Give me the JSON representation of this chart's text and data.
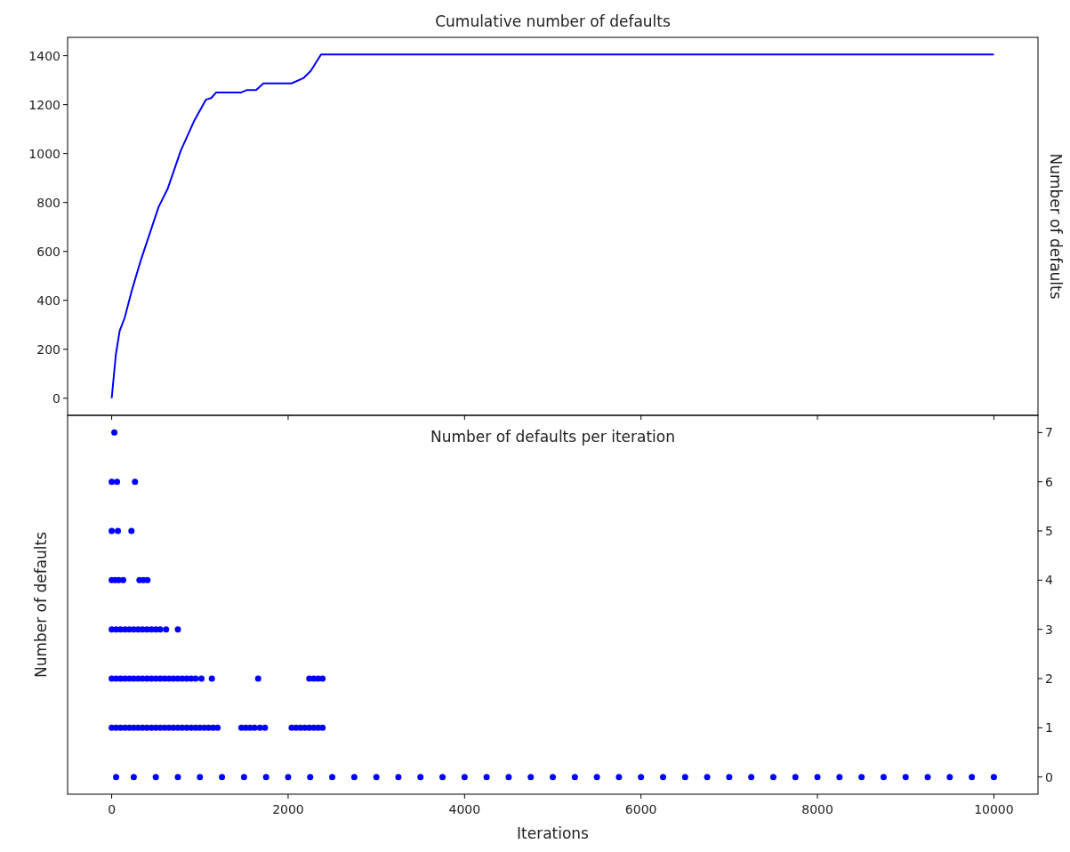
{
  "chart_data": [
    {
      "type": "line",
      "title": "Cumulative number of defaults",
      "ylabel": "Number of defaults",
      "xlim": [
        -500,
        10500
      ],
      "xticks": [
        0,
        2000,
        4000,
        6000,
        8000,
        10000
      ],
      "ylim": [
        -70,
        1475
      ],
      "yticks": [
        0,
        200,
        400,
        600,
        800,
        1000,
        1200,
        1400
      ],
      "tick_labels": "y",
      "grid": false,
      "series": [
        {
          "color": "#0000ff",
          "x": [
            0,
            47,
            90,
            147,
            231,
            331,
            432,
            532,
            633,
            783,
            934,
            1067,
            1128,
            1185,
            1469,
            1536,
            1637,
            1720,
            2038,
            2172,
            2256,
            2373,
            10000
          ],
          "values": [
            0,
            178,
            275,
            329,
            444,
            565,
            674,
            782,
            855,
            1012,
            1133,
            1220,
            1227,
            1250,
            1250,
            1260,
            1260,
            1287,
            1287,
            1308,
            1338,
            1405,
            1405
          ]
        }
      ]
    },
    {
      "type": "scatter",
      "title": "Number of defaults per iteration",
      "xlabel": "Iterations",
      "ylabel": "Number of defaults",
      "xlim": [
        -500,
        10500
      ],
      "xticks": [
        0,
        2000,
        4000,
        6000,
        8000,
        10000
      ],
      "ylim": [
        -0.35,
        7.35
      ],
      "yticks": [
        0,
        1,
        2,
        3,
        4,
        5,
        6,
        7
      ],
      "grid": false,
      "marker": "circle",
      "series": [
        {
          "color": "#0000ff",
          "x": [
            30
          ],
          "values": [
            7
          ]
        },
        {
          "color": "#0000ff",
          "x": [
            0,
            60,
            264
          ],
          "values": [
            6,
            6,
            6
          ]
        },
        {
          "color": "#0000ff",
          "x": [
            0,
            70,
            224
          ],
          "values": [
            5,
            5,
            5
          ]
        },
        {
          "color": "#0000ff",
          "x": [
            0,
            40,
            80,
            130,
            315,
            360,
            405
          ],
          "values": [
            4,
            4,
            4,
            4,
            4,
            4,
            4
          ]
        },
        {
          "color": "#0000ff",
          "x": [
            0,
            50,
            100,
            150,
            200,
            250,
            300,
            350,
            400,
            450,
            500,
            550,
            616,
            750
          ],
          "values": [
            3,
            3,
            3,
            3,
            3,
            3,
            3,
            3,
            3,
            3,
            3,
            3,
            3,
            3
          ]
        },
        {
          "color": "#0000ff",
          "x": [
            0,
            50,
            100,
            150,
            200,
            250,
            300,
            350,
            400,
            450,
            500,
            550,
            600,
            650,
            700,
            750,
            800,
            850,
            900,
            950,
            1017,
            1135,
            1660,
            2240,
            2290,
            2340,
            2390
          ],
          "values": [
            2,
            2,
            2,
            2,
            2,
            2,
            2,
            2,
            2,
            2,
            2,
            2,
            2,
            2,
            2,
            2,
            2,
            2,
            2,
            2,
            2,
            2,
            2,
            2,
            2,
            2,
            2
          ]
        },
        {
          "color": "#0000ff",
          "x": [
            0,
            50,
            100,
            150,
            200,
            250,
            300,
            350,
            400,
            450,
            500,
            550,
            600,
            650,
            700,
            750,
            800,
            850,
            900,
            950,
            1000,
            1050,
            1100,
            1150,
            1200,
            1470,
            1520,
            1570,
            1620,
            1680,
            1737,
            2040,
            2090,
            2140,
            2190,
            2240,
            2290,
            2340,
            2390
          ],
          "values": [
            1,
            1,
            1,
            1,
            1,
            1,
            1,
            1,
            1,
            1,
            1,
            1,
            1,
            1,
            1,
            1,
            1,
            1,
            1,
            1,
            1,
            1,
            1,
            1,
            1,
            1,
            1,
            1,
            1,
            1,
            1,
            1,
            1,
            1,
            1,
            1,
            1,
            1,
            1
          ]
        },
        {
          "color": "#0000ff",
          "x": [
            50,
            250,
            500,
            750,
            1000,
            1250,
            1500,
            1750,
            2000,
            2250,
            2500,
            2750,
            3000,
            3250,
            3500,
            3750,
            4000,
            4250,
            4500,
            4750,
            5000,
            5250,
            5500,
            5750,
            6000,
            6250,
            6500,
            6750,
            7000,
            7250,
            7500,
            7750,
            8000,
            8250,
            8500,
            8750,
            9000,
            9250,
            9500,
            9750,
            10000
          ],
          "values": [
            0,
            0,
            0,
            0,
            0,
            0,
            0,
            0,
            0,
            0,
            0,
            0,
            0,
            0,
            0,
            0,
            0,
            0,
            0,
            0,
            0,
            0,
            0,
            0,
            0,
            0,
            0,
            0,
            0,
            0,
            0,
            0,
            0,
            0,
            0,
            0,
            0,
            0,
            0,
            0,
            0
          ]
        }
      ]
    }
  ]
}
